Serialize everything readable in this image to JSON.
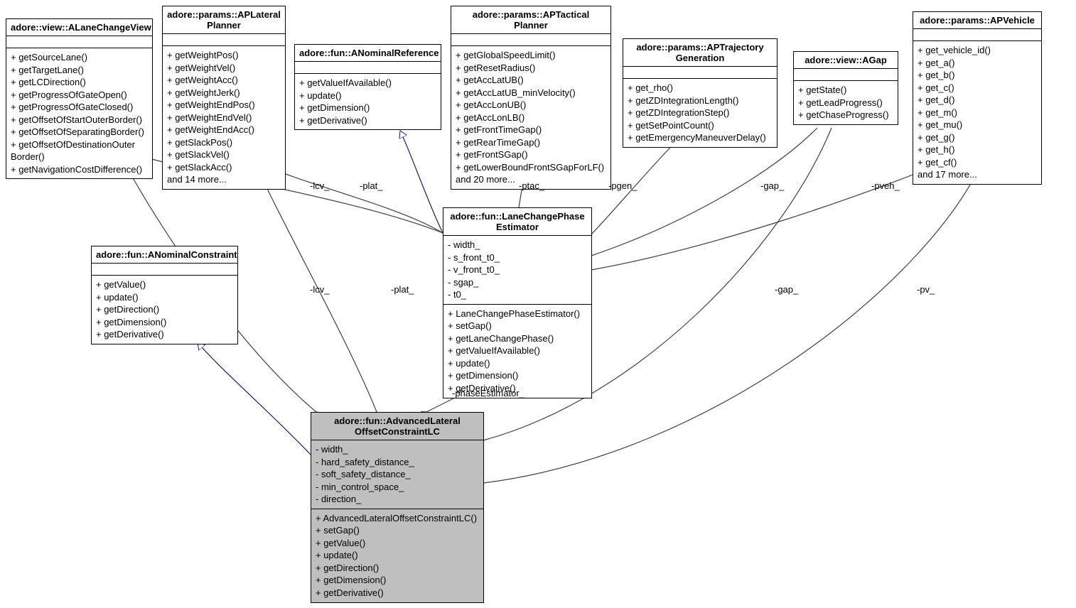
{
  "colors": {
    "line": "#404040",
    "inherit": "#191970",
    "box_border": "#000000",
    "highlight_bg": "#bfbfbf",
    "bg": "#ffffff"
  },
  "classes": {
    "lane_change_view": {
      "title": "adore::view::ALaneChangeView",
      "attrs": [],
      "methods": [
        "+ getSourceLane()",
        "+ getTargetLane()",
        "+ getLCDirection()",
        "+ getProgressOfGateOpen()",
        "+ getProgressOfGateClosed()",
        "+ getOffsetOfStartOuterBorder()",
        "+ getOffsetOfSeparatingBorder()",
        "+ getOffsetOfDestinationOuter",
        "Border()",
        "+ getNavigationCostDifference()"
      ]
    },
    "ap_lateral_planner": {
      "title": "adore::params::APLateral\nPlanner",
      "attrs": [],
      "methods": [
        "+ getWeightPos()",
        "+ getWeightVel()",
        "+ getWeightAcc()",
        "+ getWeightJerk()",
        "+ getWeightEndPos()",
        "+ getWeightEndVel()",
        "+ getWeightEndAcc()",
        "+ getSlackPos()",
        "+ getSlackVel()",
        "+ getSlackAcc()",
        "and 14 more..."
      ]
    },
    "a_nominal_reference": {
      "title": "adore::fun::ANominalReference",
      "attrs": [],
      "methods": [
        "+ getValueIfAvailable()",
        "+ update()",
        "+ getDimension()",
        "+ getDerivative()"
      ]
    },
    "ap_tactical_planner": {
      "title": "adore::params::APTactical\nPlanner",
      "attrs": [],
      "methods": [
        "+ getGlobalSpeedLimit()",
        "+ getResetRadius()",
        "+ getAccLatUB()",
        "+ getAccLatUB_minVelocity()",
        "+ getAccLonUB()",
        "+ getAccLonLB()",
        "+ getFrontTimeGap()",
        "+ getRearTimeGap()",
        "+ getFrontSGap()",
        "+ getLowerBoundFrontSGapForLF()",
        "and 20 more..."
      ]
    },
    "ap_trajectory_generation": {
      "title": "adore::params::APTrajectory\nGeneration",
      "attrs": [],
      "methods": [
        "+ get_rho()",
        "+ getZDIntegrationLength()",
        "+ getZDIntegrationStep()",
        "+ getSetPointCount()",
        "+ getEmergencyManeuverDelay()"
      ]
    },
    "a_gap": {
      "title": "adore::view::AGap",
      "attrs": [],
      "methods": [
        "+ getState()",
        "+ getLeadProgress()",
        "+ getChaseProgress()"
      ]
    },
    "ap_vehicle": {
      "title": "adore::params::APVehicle",
      "attrs": [],
      "methods": [
        "+ get_vehicle_id()",
        "+ get_a()",
        "+ get_b()",
        "+ get_c()",
        "+ get_d()",
        "+ get_m()",
        "+ get_mu()",
        "+ get_g()",
        "+ get_h()",
        "+ get_cf()",
        "and 17 more..."
      ]
    },
    "a_nominal_constraint": {
      "title": "adore::fun::ANominalConstraint",
      "attrs": [],
      "methods": [
        "+ getValue()",
        "+ update()",
        "+ getDirection()",
        "+ getDimension()",
        "+ getDerivative()"
      ]
    },
    "lane_change_phase_estimator": {
      "title": "adore::fun::LaneChangePhase\nEstimator",
      "attrs": [
        "- width_",
        "- s_front_t0_",
        "- v_front_t0_",
        "- sgap_",
        "- t0_"
      ],
      "methods": [
        "+ LaneChangePhaseEstimator()",
        "+ setGap()",
        "+ getLaneChangePhase()",
        "+ getValueIfAvailable()",
        "+ update()",
        "+ getDimension()",
        "+ getDerivative()"
      ]
    },
    "advanced_lateral_offset_constraint_lc": {
      "title": "adore::fun::AdvancedLateral\nOffsetConstraintLC",
      "attrs": [
        "- width_",
        "- hard_safety_distance_",
        "- soft_safety_distance_",
        "- min_control_space_",
        "- direction_"
      ],
      "methods": [
        "+ AdvancedLateralOffsetConstraintLC()",
        "+ setGap()",
        "+ getValue()",
        "+ update()",
        "+ getDirection()",
        "+ getDimension()",
        "+ getDerivative()"
      ]
    }
  },
  "edge_labels": {
    "lcv1": "-lcv_",
    "plat1": "-plat_",
    "ptac": "-ptac_",
    "pgen": "-pgen_",
    "gap1": "-gap_",
    "pveh": "-pveh_",
    "lcv2": "-lcv_",
    "plat2": "-plat_",
    "phaseEstimator": "-phaseEstimator_",
    "gap2": "-gap_",
    "pv": "-pv_"
  }
}
